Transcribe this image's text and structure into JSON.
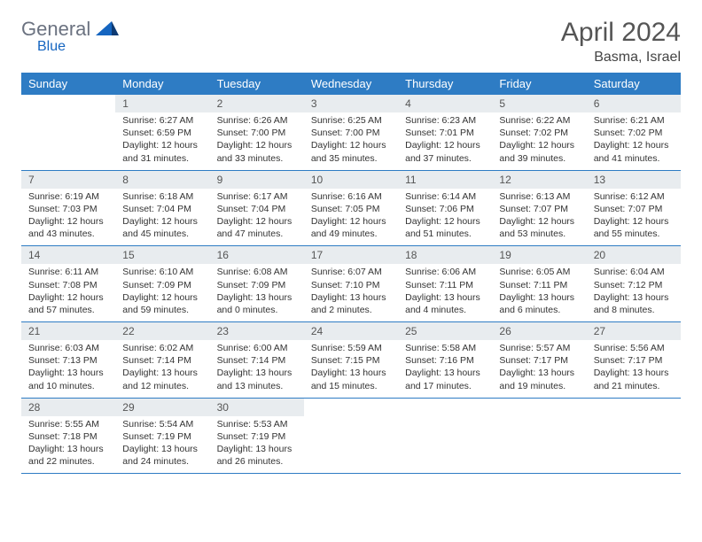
{
  "logo": {
    "part1": "General",
    "part2": "Blue"
  },
  "title": "April 2024",
  "location": "Basma, Israel",
  "weekdays": [
    "Sunday",
    "Monday",
    "Tuesday",
    "Wednesday",
    "Thursday",
    "Friday",
    "Saturday"
  ],
  "colors": {
    "header_bg": "#2e7cc4",
    "header_fg": "#ffffff",
    "daynum_bg": "#e8ecef",
    "divider": "#2e7cc4",
    "logo_gray": "#6b7280",
    "logo_blue": "#1565c0",
    "text": "#333333"
  },
  "fonts": {
    "title_size_pt": 22,
    "location_size_pt": 12,
    "weekday_size_pt": 10,
    "daynum_size_pt": 9,
    "info_size_pt": 8
  },
  "layout": {
    "cols": 7,
    "rows": 5,
    "first_weekday_index": 1,
    "days_in_month": 30
  },
  "days": [
    {
      "n": 1,
      "sunrise": "6:27 AM",
      "sunset": "6:59 PM",
      "daylight": "12 hours and 31 minutes."
    },
    {
      "n": 2,
      "sunrise": "6:26 AM",
      "sunset": "7:00 PM",
      "daylight": "12 hours and 33 minutes."
    },
    {
      "n": 3,
      "sunrise": "6:25 AM",
      "sunset": "7:00 PM",
      "daylight": "12 hours and 35 minutes."
    },
    {
      "n": 4,
      "sunrise": "6:23 AM",
      "sunset": "7:01 PM",
      "daylight": "12 hours and 37 minutes."
    },
    {
      "n": 5,
      "sunrise": "6:22 AM",
      "sunset": "7:02 PM",
      "daylight": "12 hours and 39 minutes."
    },
    {
      "n": 6,
      "sunrise": "6:21 AM",
      "sunset": "7:02 PM",
      "daylight": "12 hours and 41 minutes."
    },
    {
      "n": 7,
      "sunrise": "6:19 AM",
      "sunset": "7:03 PM",
      "daylight": "12 hours and 43 minutes."
    },
    {
      "n": 8,
      "sunrise": "6:18 AM",
      "sunset": "7:04 PM",
      "daylight": "12 hours and 45 minutes."
    },
    {
      "n": 9,
      "sunrise": "6:17 AM",
      "sunset": "7:04 PM",
      "daylight": "12 hours and 47 minutes."
    },
    {
      "n": 10,
      "sunrise": "6:16 AM",
      "sunset": "7:05 PM",
      "daylight": "12 hours and 49 minutes."
    },
    {
      "n": 11,
      "sunrise": "6:14 AM",
      "sunset": "7:06 PM",
      "daylight": "12 hours and 51 minutes."
    },
    {
      "n": 12,
      "sunrise": "6:13 AM",
      "sunset": "7:07 PM",
      "daylight": "12 hours and 53 minutes."
    },
    {
      "n": 13,
      "sunrise": "6:12 AM",
      "sunset": "7:07 PM",
      "daylight": "12 hours and 55 minutes."
    },
    {
      "n": 14,
      "sunrise": "6:11 AM",
      "sunset": "7:08 PM",
      "daylight": "12 hours and 57 minutes."
    },
    {
      "n": 15,
      "sunrise": "6:10 AM",
      "sunset": "7:09 PM",
      "daylight": "12 hours and 59 minutes."
    },
    {
      "n": 16,
      "sunrise": "6:08 AM",
      "sunset": "7:09 PM",
      "daylight": "13 hours and 0 minutes."
    },
    {
      "n": 17,
      "sunrise": "6:07 AM",
      "sunset": "7:10 PM",
      "daylight": "13 hours and 2 minutes."
    },
    {
      "n": 18,
      "sunrise": "6:06 AM",
      "sunset": "7:11 PM",
      "daylight": "13 hours and 4 minutes."
    },
    {
      "n": 19,
      "sunrise": "6:05 AM",
      "sunset": "7:11 PM",
      "daylight": "13 hours and 6 minutes."
    },
    {
      "n": 20,
      "sunrise": "6:04 AM",
      "sunset": "7:12 PM",
      "daylight": "13 hours and 8 minutes."
    },
    {
      "n": 21,
      "sunrise": "6:03 AM",
      "sunset": "7:13 PM",
      "daylight": "13 hours and 10 minutes."
    },
    {
      "n": 22,
      "sunrise": "6:02 AM",
      "sunset": "7:14 PM",
      "daylight": "13 hours and 12 minutes."
    },
    {
      "n": 23,
      "sunrise": "6:00 AM",
      "sunset": "7:14 PM",
      "daylight": "13 hours and 13 minutes."
    },
    {
      "n": 24,
      "sunrise": "5:59 AM",
      "sunset": "7:15 PM",
      "daylight": "13 hours and 15 minutes."
    },
    {
      "n": 25,
      "sunrise": "5:58 AM",
      "sunset": "7:16 PM",
      "daylight": "13 hours and 17 minutes."
    },
    {
      "n": 26,
      "sunrise": "5:57 AM",
      "sunset": "7:17 PM",
      "daylight": "13 hours and 19 minutes."
    },
    {
      "n": 27,
      "sunrise": "5:56 AM",
      "sunset": "7:17 PM",
      "daylight": "13 hours and 21 minutes."
    },
    {
      "n": 28,
      "sunrise": "5:55 AM",
      "sunset": "7:18 PM",
      "daylight": "13 hours and 22 minutes."
    },
    {
      "n": 29,
      "sunrise": "5:54 AM",
      "sunset": "7:19 PM",
      "daylight": "13 hours and 24 minutes."
    },
    {
      "n": 30,
      "sunrise": "5:53 AM",
      "sunset": "7:19 PM",
      "daylight": "13 hours and 26 minutes."
    }
  ],
  "labels": {
    "sunrise": "Sunrise:",
    "sunset": "Sunset:",
    "daylight": "Daylight:"
  }
}
